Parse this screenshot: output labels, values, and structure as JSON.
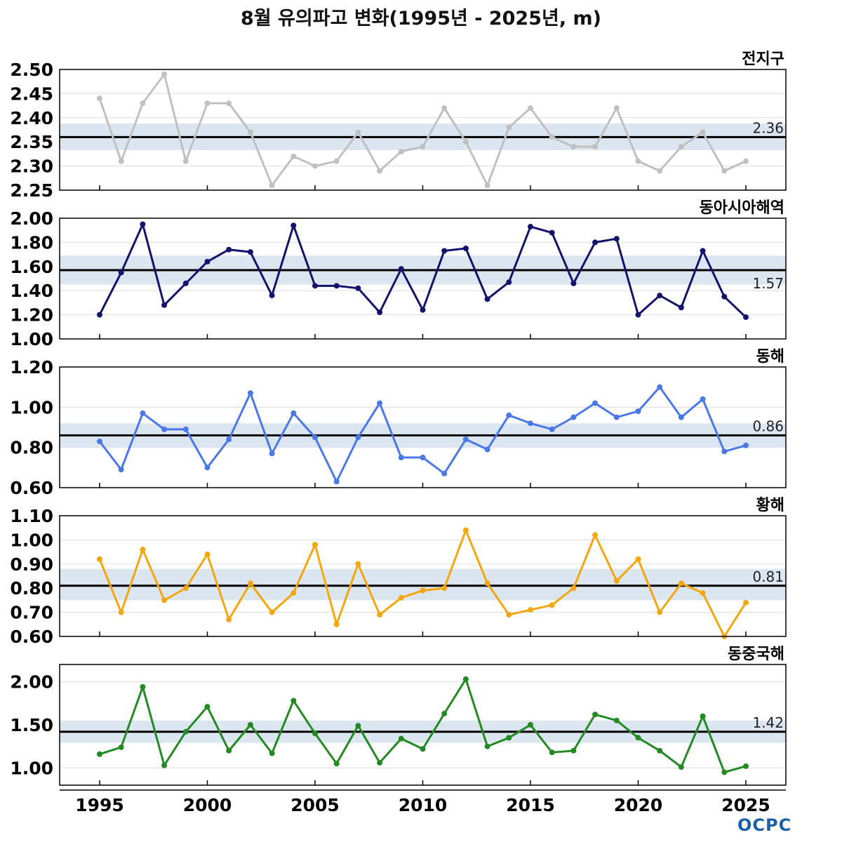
{
  "title": "8월 유의파고 변화(1995년 - 2025년, m)",
  "logo": "OCPC",
  "x_ticks": [
    "1995",
    "2000",
    "2005",
    "2010",
    "2015",
    "2020",
    "2025"
  ],
  "chart_data": [
    {
      "type": "line",
      "region": "전지구",
      "color": "#c0c0c0",
      "ylim": [
        2.25,
        2.5
      ],
      "yticks": [
        "2.25",
        "2.30",
        "2.35",
        "2.40",
        "2.45",
        "2.50"
      ],
      "mean_value": 2.36,
      "mean_label": "2.36",
      "band": [
        2.333,
        2.388
      ],
      "x": [
        1995,
        1996,
        1997,
        1998,
        1999,
        2000,
        2001,
        2002,
        2003,
        2004,
        2005,
        2006,
        2007,
        2008,
        2009,
        2010,
        2011,
        2012,
        2013,
        2014,
        2015,
        2016,
        2017,
        2018,
        2019,
        2020,
        2021,
        2022,
        2023,
        2024,
        2025
      ],
      "values": [
        2.44,
        2.31,
        2.43,
        2.49,
        2.31,
        2.43,
        2.43,
        2.37,
        2.26,
        2.32,
        2.3,
        2.31,
        2.37,
        2.29,
        2.33,
        2.34,
        2.42,
        2.35,
        2.26,
        2.38,
        2.42,
        2.36,
        2.34,
        2.34,
        2.42,
        2.31,
        2.29,
        2.34,
        2.37,
        2.29,
        2.31
      ]
    },
    {
      "type": "line",
      "region": "동아시아해역",
      "color": "#13136e",
      "ylim": [
        1.0,
        2.0
      ],
      "yticks": [
        "1.00",
        "1.20",
        "1.40",
        "1.60",
        "1.80",
        "2.00"
      ],
      "mean_value": 1.57,
      "mean_label": "1.57",
      "band": [
        1.45,
        1.69
      ],
      "x": [
        1995,
        1996,
        1997,
        1998,
        1999,
        2000,
        2001,
        2002,
        2003,
        2004,
        2005,
        2006,
        2007,
        2008,
        2009,
        2010,
        2011,
        2012,
        2013,
        2014,
        2015,
        2016,
        2017,
        2018,
        2019,
        2020,
        2021,
        2022,
        2023,
        2024,
        2025
      ],
      "values": [
        1.2,
        1.55,
        1.95,
        1.28,
        1.46,
        1.64,
        1.74,
        1.72,
        1.36,
        1.94,
        1.44,
        1.44,
        1.42,
        1.22,
        1.58,
        1.24,
        1.73,
        1.75,
        1.33,
        1.47,
        1.93,
        1.88,
        1.46,
        1.8,
        1.83,
        1.2,
        1.36,
        1.26,
        1.73,
        1.35,
        1.18
      ]
    },
    {
      "type": "line",
      "region": "동해",
      "color": "#4a78e6",
      "ylim": [
        0.6,
        1.2
      ],
      "yticks": [
        "0.60",
        "0.80",
        "1.00",
        "1.20"
      ],
      "mean_value": 0.86,
      "mean_label": "0.86",
      "band": [
        0.8,
        0.92
      ],
      "x": [
        1995,
        1996,
        1997,
        1998,
        1999,
        2000,
        2001,
        2002,
        2003,
        2004,
        2005,
        2006,
        2007,
        2008,
        2009,
        2010,
        2011,
        2012,
        2013,
        2014,
        2015,
        2016,
        2017,
        2018,
        2019,
        2020,
        2021,
        2022,
        2023,
        2024,
        2025
      ],
      "values": [
        0.83,
        0.69,
        0.97,
        0.89,
        0.89,
        0.7,
        0.84,
        1.07,
        0.77,
        0.97,
        0.85,
        0.63,
        0.85,
        1.02,
        0.75,
        0.75,
        0.67,
        0.84,
        0.79,
        0.96,
        0.92,
        0.89,
        0.95,
        1.02,
        0.95,
        0.98,
        1.1,
        0.95,
        1.04,
        0.78,
        0.81
      ]
    },
    {
      "type": "line",
      "region": "황해",
      "color": "#f4a60f",
      "ylim": [
        0.6,
        1.1
      ],
      "yticks": [
        "0.60",
        "0.70",
        "0.80",
        "0.90",
        "1.00",
        "1.10"
      ],
      "mean_value": 0.81,
      "mean_label": "0.81",
      "band": [
        0.75,
        0.88
      ],
      "x": [
        1995,
        1996,
        1997,
        1998,
        1999,
        2000,
        2001,
        2002,
        2003,
        2004,
        2005,
        2006,
        2007,
        2008,
        2009,
        2010,
        2011,
        2012,
        2013,
        2014,
        2015,
        2016,
        2017,
        2018,
        2019,
        2020,
        2021,
        2022,
        2023,
        2024,
        2025
      ],
      "values": [
        0.92,
        0.7,
        0.96,
        0.75,
        0.8,
        0.94,
        0.67,
        0.82,
        0.7,
        0.78,
        0.98,
        0.65,
        0.9,
        0.69,
        0.76,
        0.79,
        0.8,
        1.04,
        0.82,
        0.69,
        0.71,
        0.73,
        0.8,
        1.02,
        0.83,
        0.92,
        0.7,
        0.82,
        0.78,
        0.6,
        0.74
      ]
    },
    {
      "type": "line",
      "region": "동중국해",
      "color": "#238a23",
      "ylim": [
        0.8,
        2.2
      ],
      "yticks": [
        "1.00",
        "1.50",
        "2.00"
      ],
      "mean_value": 1.42,
      "mean_label": "1.42",
      "band": [
        1.29,
        1.55
      ],
      "x": [
        1995,
        1996,
        1997,
        1998,
        1999,
        2000,
        2001,
        2002,
        2003,
        2004,
        2005,
        2006,
        2007,
        2008,
        2009,
        2010,
        2011,
        2012,
        2013,
        2014,
        2015,
        2016,
        2017,
        2018,
        2019,
        2020,
        2021,
        2022,
        2023,
        2024,
        2025
      ],
      "values": [
        1.16,
        1.24,
        1.94,
        1.03,
        1.42,
        1.71,
        1.2,
        1.5,
        1.17,
        1.78,
        1.4,
        1.05,
        1.49,
        1.06,
        1.34,
        1.22,
        1.63,
        2.03,
        1.25,
        1.35,
        1.5,
        1.18,
        1.2,
        1.62,
        1.55,
        1.35,
        1.2,
        1.01,
        1.6,
        0.95,
        1.02
      ]
    }
  ]
}
